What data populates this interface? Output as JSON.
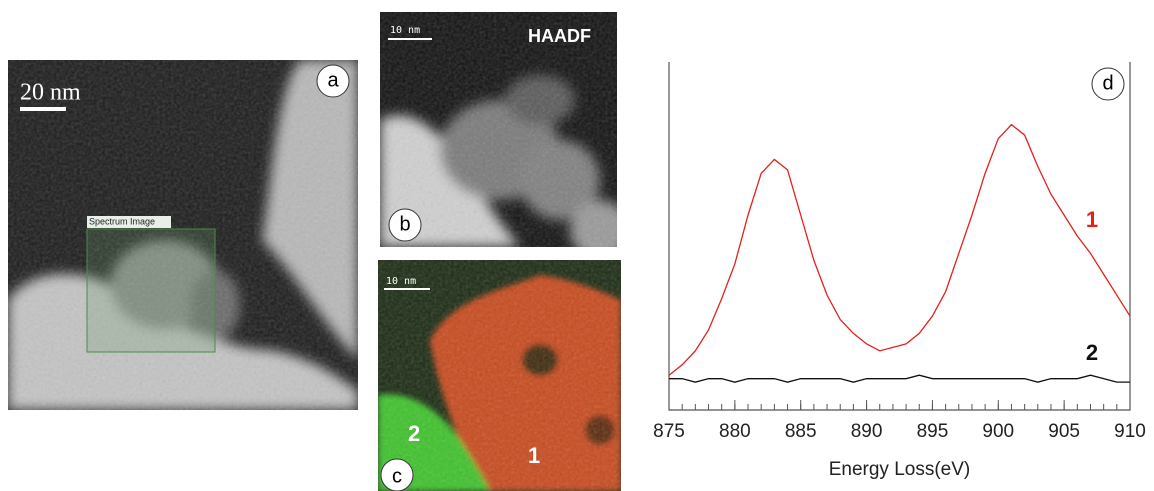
{
  "panel_a": {
    "scale_bar": "20 nm",
    "label": "a",
    "roi_label": "Spectrum Image"
  },
  "panel_b": {
    "scale_bar": "10 nm",
    "title": "HAADF",
    "label": "b"
  },
  "panel_c": {
    "scale_bar": "10 nm",
    "region_2": "2",
    "region_1": "1",
    "label": "c"
  },
  "chart_data": {
    "type": "line",
    "label": "d",
    "xlabel": "Energy Loss(eV)",
    "x": [
      875,
      876,
      877,
      878,
      879,
      880,
      881,
      882,
      883,
      884,
      885,
      886,
      887,
      888,
      889,
      890,
      891,
      892,
      893,
      894,
      895,
      896,
      897,
      898,
      899,
      900,
      901,
      902,
      903,
      904,
      905,
      906,
      907,
      908,
      909,
      910
    ],
    "series": [
      {
        "name": "1",
        "color": "#e3201b",
        "values": [
          10,
          13,
          17,
          23,
          32,
          42,
          56,
          68,
          72,
          69,
          56,
          43,
          33,
          26,
          22,
          19,
          17,
          18,
          19,
          22,
          27,
          34,
          45,
          56,
          68,
          78,
          82,
          79,
          70,
          62,
          56,
          50,
          45,
          39,
          33,
          27
        ]
      },
      {
        "name": "2",
        "color": "#111111",
        "values": [
          9,
          9,
          8,
          9,
          9,
          8,
          9,
          9,
          9,
          8,
          9,
          9,
          9,
          9,
          8,
          9,
          9,
          9,
          9,
          10,
          9,
          9,
          9,
          9,
          9,
          9,
          9,
          9,
          8,
          9,
          9,
          9,
          10,
          9,
          8,
          8
        ]
      }
    ],
    "xlim": [
      875,
      910
    ],
    "xticks": [
      875,
      880,
      885,
      890,
      895,
      900,
      905,
      910
    ],
    "ylim": [
      0,
      100
    ]
  }
}
